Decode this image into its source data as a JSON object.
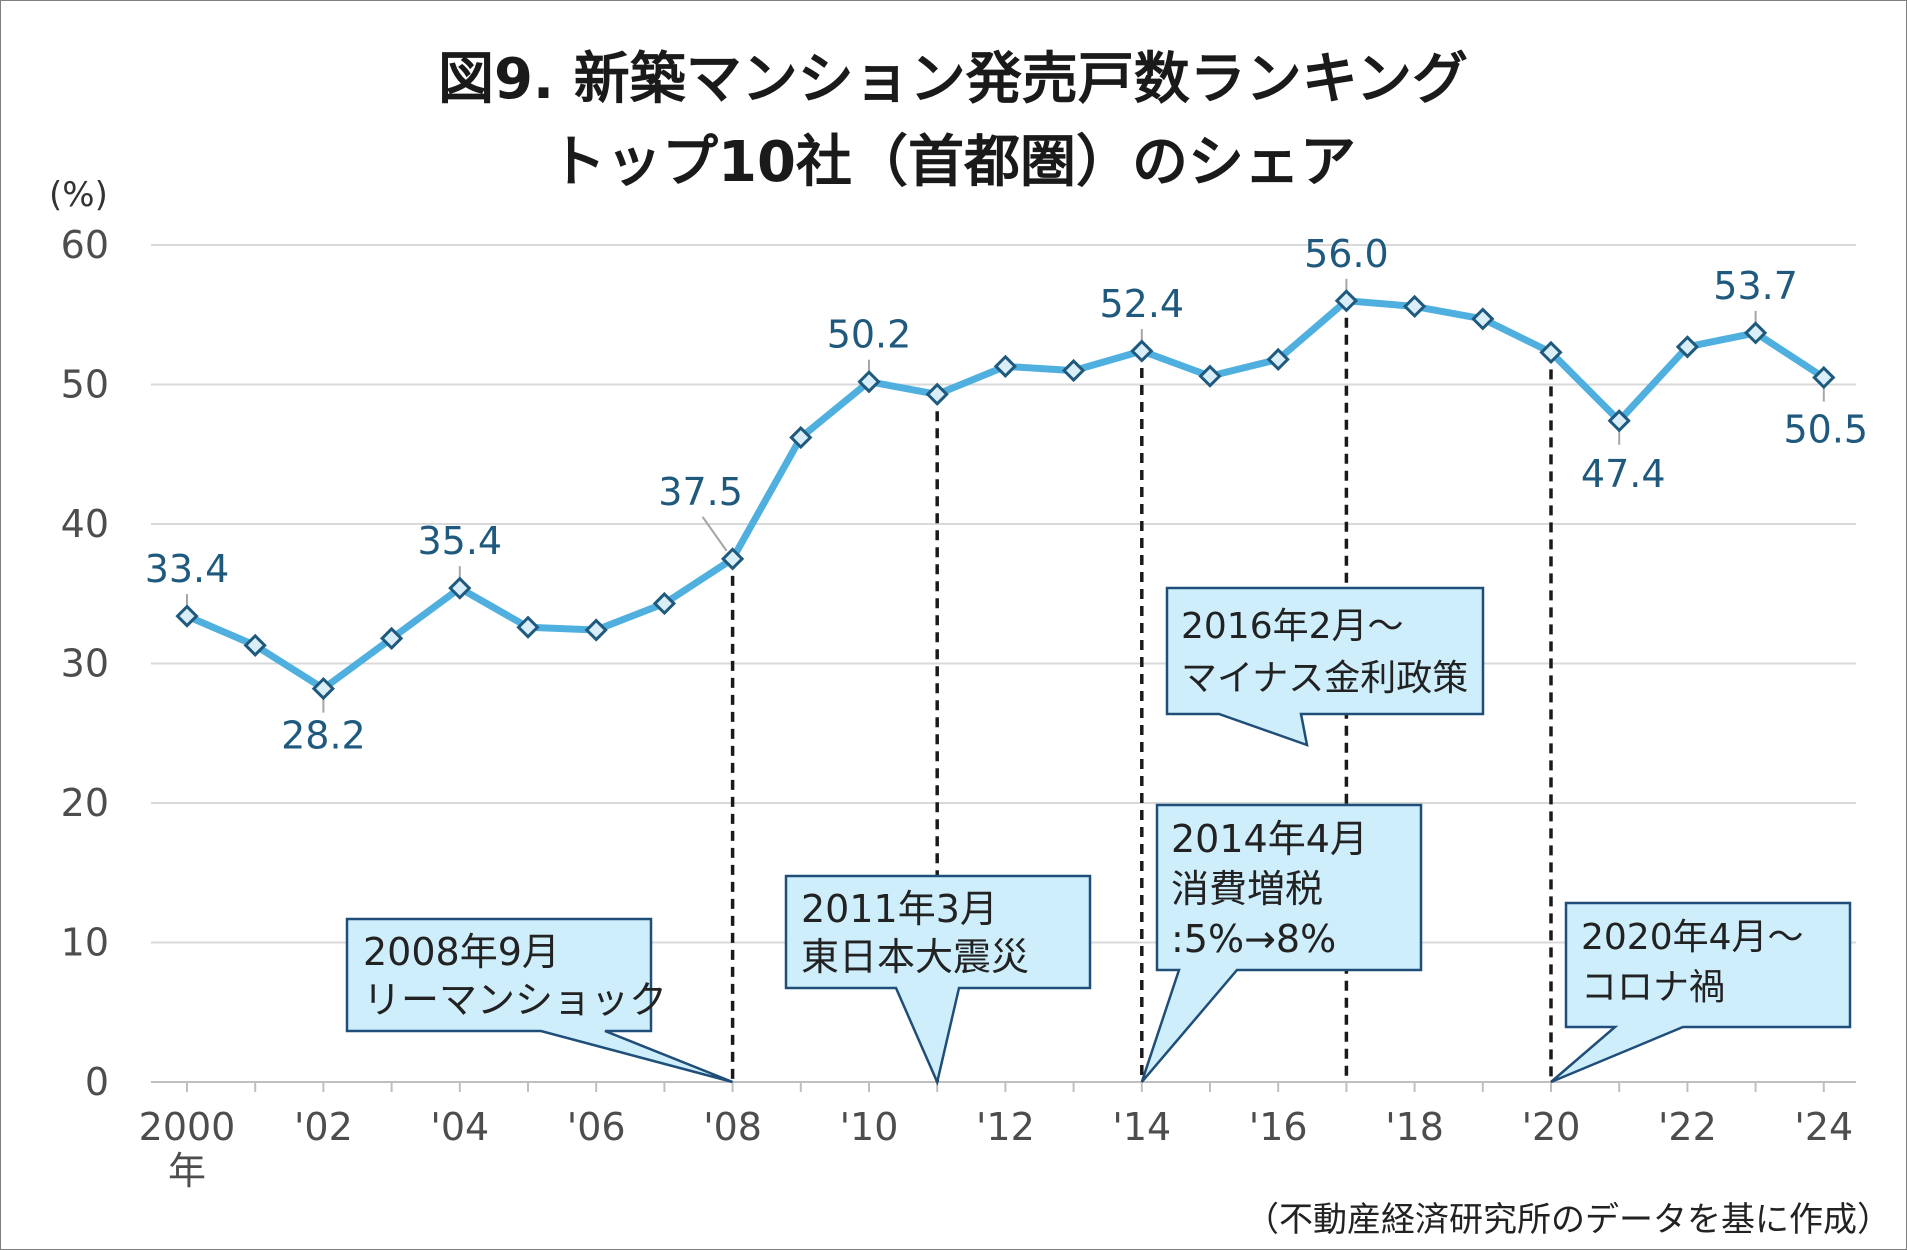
{
  "title_line1": "図9. 新築マンション発売戸数ランキング",
  "title_line2": "トップ10社（首都圏）のシェア",
  "source": "（不動産経済研究所のデータを基に作成）",
  "colors": {
    "line": "#4fb0e0",
    "marker_fill": "#d9eef9",
    "marker_stroke": "#1f5a7e",
    "label": "#1f5a7e",
    "callout_fill": "#cfeefc",
    "callout_stroke": "#1f4e79",
    "grid": "#d9d9d9"
  },
  "chart_data": {
    "type": "line",
    "ylabel": "(%)",
    "xlabel": "年",
    "ylim": [
      0,
      60
    ],
    "yticks": [
      0,
      10,
      20,
      30,
      40,
      50,
      60
    ],
    "grid": true,
    "x": [
      2000,
      2001,
      2002,
      2003,
      2004,
      2005,
      2006,
      2007,
      2008,
      2009,
      2010,
      2011,
      2012,
      2013,
      2014,
      2015,
      2016,
      2017,
      2018,
      2019,
      2020,
      2021,
      2022,
      2023,
      2024
    ],
    "xticks": [
      {
        "year": 2000,
        "label": "2000"
      },
      {
        "year": 2002,
        "label": "'02"
      },
      {
        "year": 2004,
        "label": "'04"
      },
      {
        "year": 2006,
        "label": "'06"
      },
      {
        "year": 2008,
        "label": "'08"
      },
      {
        "year": 2010,
        "label": "'10"
      },
      {
        "year": 2012,
        "label": "'12"
      },
      {
        "year": 2014,
        "label": "'14"
      },
      {
        "year": 2016,
        "label": "'16"
      },
      {
        "year": 2018,
        "label": "'18"
      },
      {
        "year": 2020,
        "label": "'20"
      },
      {
        "year": 2022,
        "label": "'22"
      },
      {
        "year": 2024,
        "label": "'24"
      }
    ],
    "values": [
      33.4,
      31.3,
      28.2,
      31.8,
      35.4,
      32.6,
      32.4,
      34.3,
      37.5,
      46.2,
      50.2,
      49.3,
      51.3,
      51.0,
      52.4,
      50.6,
      51.8,
      56.0,
      55.6,
      54.7,
      52.3,
      47.4,
      52.7,
      53.7,
      50.5
    ],
    "data_labels": [
      {
        "year": 2000,
        "text": "33.4"
      },
      {
        "year": 2002,
        "text": "28.2"
      },
      {
        "year": 2004,
        "text": "35.4"
      },
      {
        "year": 2008,
        "text": "37.5"
      },
      {
        "year": 2010,
        "text": "50.2"
      },
      {
        "year": 2014,
        "text": "52.4"
      },
      {
        "year": 2017,
        "text": "56.0"
      },
      {
        "year": 2021,
        "text": "47.4"
      },
      {
        "year": 2023,
        "text": "53.7"
      },
      {
        "year": 2024,
        "text": "50.5"
      }
    ],
    "event_lines": [
      2008,
      2011,
      2014,
      2017,
      2020
    ],
    "annotations": [
      {
        "lines": [
          "2008年9月",
          "リーマンショック"
        ],
        "target_year": 2008
      },
      {
        "lines": [
          "2011年3月",
          "東日本大震災"
        ],
        "target_year": 2011
      },
      {
        "lines": [
          "2014年4月",
          "消費増税",
          ":5%→8%"
        ],
        "target_year": 2014
      },
      {
        "lines": [
          "2016年2月～",
          "マイナス金利政策"
        ],
        "target_year": 2016
      },
      {
        "lines": [
          "2020年4月～",
          "コロナ禍"
        ],
        "target_year": 2020
      }
    ]
  }
}
